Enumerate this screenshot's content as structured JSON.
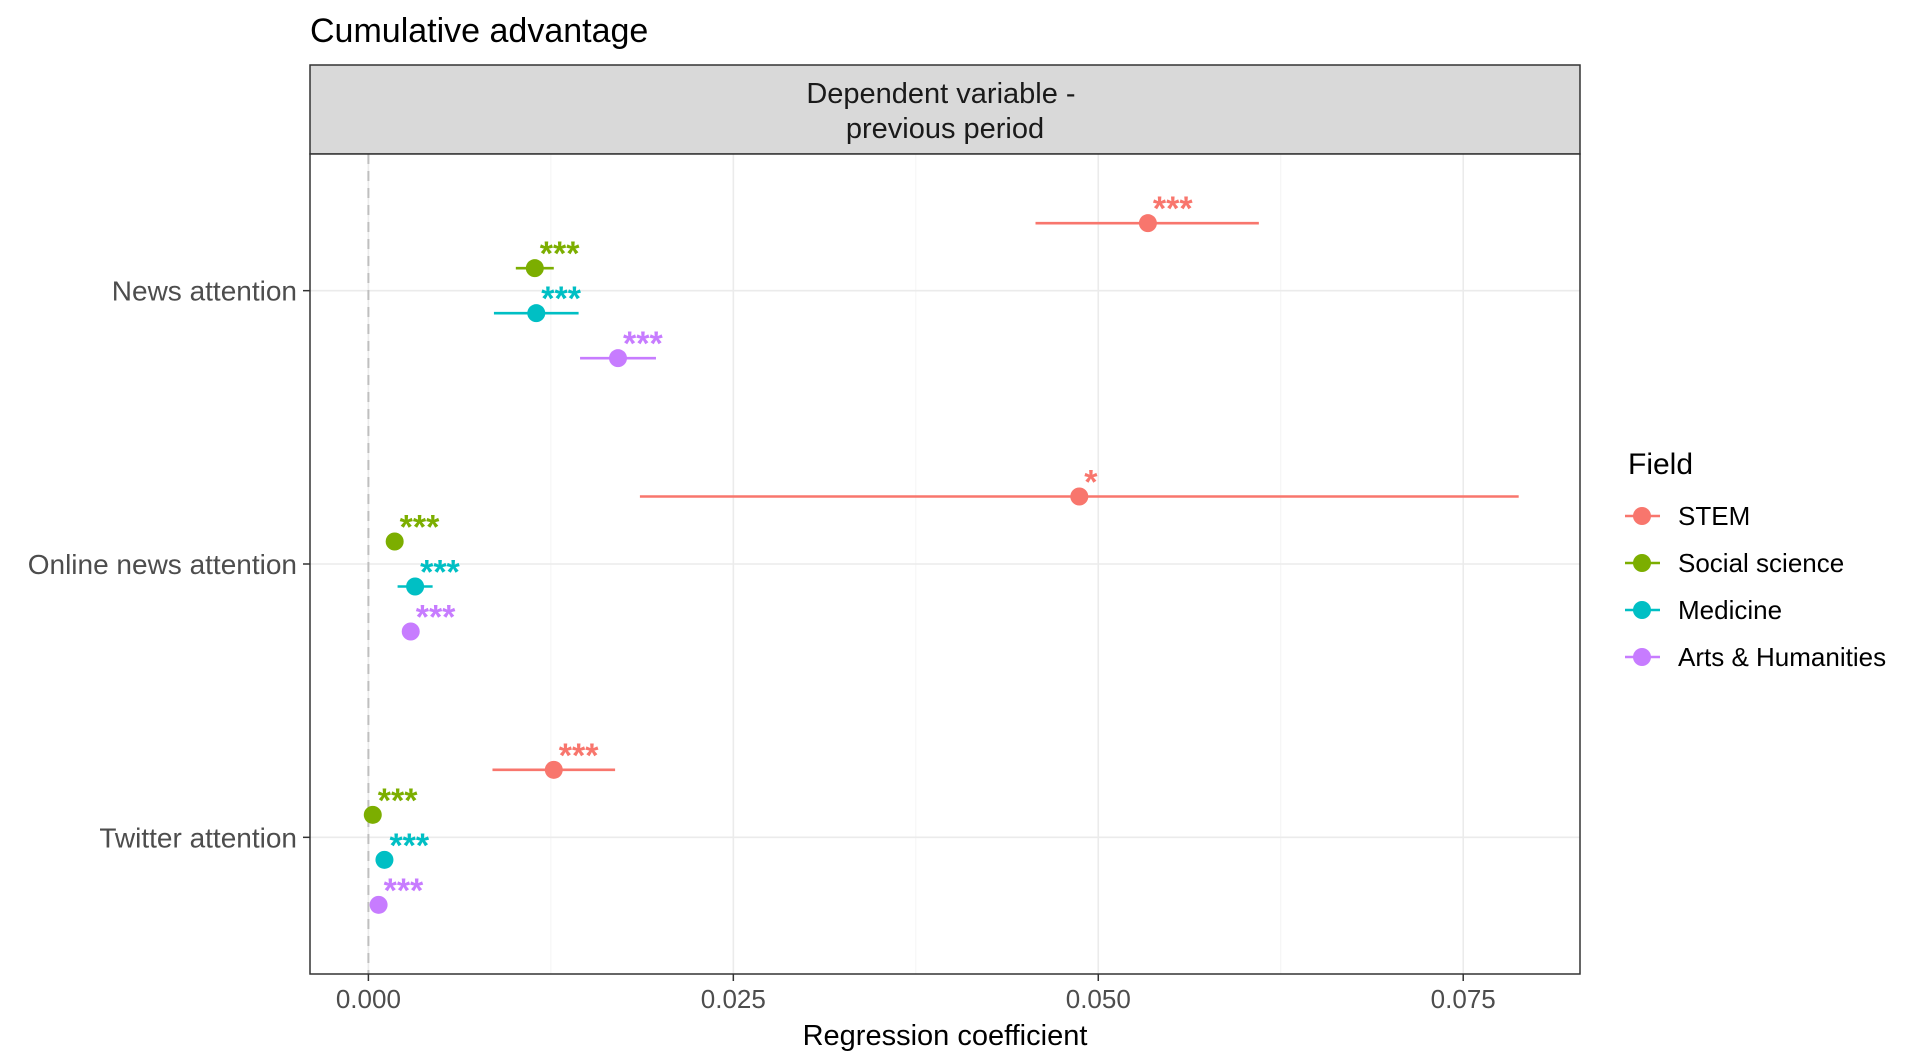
{
  "chart_data": {
    "type": "scatter",
    "subtype": "coefficient-plot-with-error-bars",
    "title": "Cumulative advantage",
    "facet": "Dependent variable -\nprevious period",
    "xlabel": "Regression coefficient",
    "ylabel": "",
    "xlim": [
      -0.004,
      0.083
    ],
    "x_ticks": [
      "0.000",
      "0.025",
      "0.050",
      "0.075"
    ],
    "x_tick_values": [
      0.0,
      0.025,
      0.05,
      0.075
    ],
    "reference_line_x": 0,
    "categories": [
      "News attention",
      "Online news attention",
      "Twitter attention"
    ],
    "legend": {
      "title": "Field",
      "placement": "right"
    },
    "grid": true,
    "series": [
      {
        "name": "STEM",
        "color": "#F8766D",
        "points": [
          {
            "category": "News attention",
            "estimate": 0.0534,
            "ci_low": 0.0457,
            "ci_high": 0.061,
            "sig": "***"
          },
          {
            "category": "Online news attention",
            "estimate": 0.0487,
            "ci_low": 0.0186,
            "ci_high": 0.0788,
            "sig": "*"
          },
          {
            "category": "Twitter attention",
            "estimate": 0.0127,
            "ci_low": 0.0085,
            "ci_high": 0.0169,
            "sig": "***"
          }
        ]
      },
      {
        "name": "Social science",
        "color": "#7CAE00",
        "points": [
          {
            "category": "News attention",
            "estimate": 0.0114,
            "ci_low": 0.0101,
            "ci_high": 0.0127,
            "sig": "***"
          },
          {
            "category": "Online news attention",
            "estimate": 0.0018,
            "ci_low": 0.0014,
            "ci_high": 0.0022,
            "sig": "***"
          },
          {
            "category": "Twitter attention",
            "estimate": 0.0003,
            "ci_low": 0.0001,
            "ci_high": 0.0005,
            "sig": "***"
          }
        ]
      },
      {
        "name": "Medicine",
        "color": "#00BFC4",
        "points": [
          {
            "category": "News attention",
            "estimate": 0.0115,
            "ci_low": 0.0086,
            "ci_high": 0.0144,
            "sig": "***"
          },
          {
            "category": "Online news attention",
            "estimate": 0.0032,
            "ci_low": 0.002,
            "ci_high": 0.0044,
            "sig": "***"
          },
          {
            "category": "Twitter attention",
            "estimate": 0.0011,
            "ci_low": 0.0008,
            "ci_high": 0.0014,
            "sig": "***"
          }
        ]
      },
      {
        "name": "Arts & Humanities",
        "color": "#C77CFF",
        "points": [
          {
            "category": "News attention",
            "estimate": 0.0171,
            "ci_low": 0.0145,
            "ci_high": 0.0197,
            "sig": "***"
          },
          {
            "category": "Online news attention",
            "estimate": 0.0029,
            "ci_low": 0.0025,
            "ci_high": 0.0033,
            "sig": "***"
          },
          {
            "category": "Twitter attention",
            "estimate": 0.0007,
            "ci_low": 0.0004,
            "ci_high": 0.001,
            "sig": "***"
          }
        ]
      }
    ]
  }
}
